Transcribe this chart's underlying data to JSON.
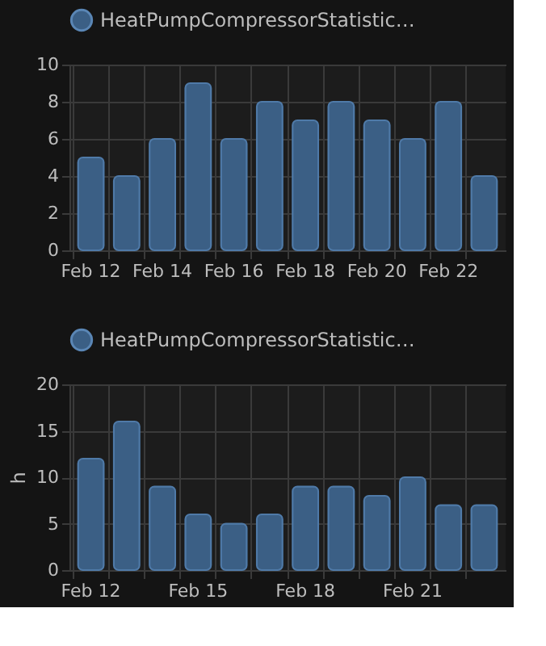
{
  "chart_data": [
    {
      "type": "bar",
      "categories": [
        "Feb 12",
        null,
        "Feb 14",
        null,
        "Feb 16",
        null,
        "Feb 18",
        null,
        "Feb 20",
        null,
        "Feb 22",
        null
      ],
      "series": [
        {
          "name": "HeatPumpCompressorStatistic…",
          "color": "#3b5f85",
          "values": [
            5,
            4,
            6,
            9,
            6,
            8,
            7,
            8,
            7,
            6,
            8,
            4
          ]
        }
      ],
      "ylim": [
        0,
        10
      ],
      "yticks": [
        0,
        2,
        4,
        6,
        8,
        10
      ],
      "grid": true,
      "legend": "top"
    },
    {
      "type": "bar",
      "categories": [
        "Feb 12",
        null,
        null,
        "Feb 15",
        null,
        null,
        "Feb 18",
        null,
        null,
        "Feb 21",
        null,
        null
      ],
      "series": [
        {
          "name": "HeatPumpCompressorStatistic…",
          "color": "#3b5f85",
          "values": [
            12,
            16,
            9,
            6,
            5,
            6,
            9,
            9,
            8,
            10,
            7,
            7
          ]
        }
      ],
      "ylabel": "h",
      "ylim": [
        0,
        20
      ],
      "yticks": [
        0,
        5,
        10,
        15,
        20
      ],
      "grid": true,
      "legend": "top"
    }
  ]
}
